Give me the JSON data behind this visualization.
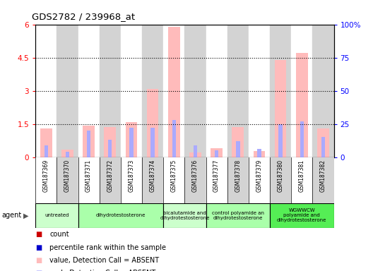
{
  "title": "GDS2782 / 239968_at",
  "samples": [
    "GSM187369",
    "GSM187370",
    "GSM187371",
    "GSM187372",
    "GSM187373",
    "GSM187374",
    "GSM187375",
    "GSM187376",
    "GSM187377",
    "GSM187378",
    "GSM187379",
    "GSM187380",
    "GSM187381",
    "GSM187382"
  ],
  "absent_value": [
    1.3,
    0.35,
    1.43,
    1.35,
    1.6,
    3.1,
    5.9,
    0.22,
    0.4,
    1.35,
    0.28,
    4.4,
    4.7,
    1.3
  ],
  "absent_rank_pct": [
    9,
    4,
    20,
    13,
    22,
    22,
    28,
    9,
    5,
    12,
    6,
    25,
    27,
    15
  ],
  "agents": [
    {
      "label": "untreated",
      "start": 0,
      "end": 2,
      "color": "#ccffcc"
    },
    {
      "label": "dihydrotestosterone",
      "start": 2,
      "end": 6,
      "color": "#aaffaa"
    },
    {
      "label": "bicalutamide and\ndihydrotestosterone",
      "start": 6,
      "end": 8,
      "color": "#ccffcc"
    },
    {
      "label": "control polyamide an\ndihydrotestosterone",
      "start": 8,
      "end": 11,
      "color": "#aaffaa"
    },
    {
      "label": "WGWWCW\npolyamide and\ndihydrotestosterone",
      "start": 11,
      "end": 14,
      "color": "#55ee55"
    }
  ],
  "ylim": [
    0,
    6
  ],
  "y2lim": [
    0,
    100
  ],
  "yticks": [
    0,
    1.5,
    3.0,
    4.5,
    6.0
  ],
  "ytick_labels": [
    "0",
    "1.5",
    "3",
    "4.5",
    "6"
  ],
  "y2ticks": [
    0,
    25,
    50,
    75,
    100
  ],
  "y2tick_labels": [
    "0",
    "25",
    "50",
    "75",
    "100%"
  ],
  "absent_bar_color": "#ffbbbb",
  "absent_rank_bar_color": "#aaaaff",
  "count_color": "#cc0000",
  "rank_color": "#0000cc",
  "col_colors": [
    "#ffffff",
    "#d3d3d3"
  ],
  "plot_bg": "#ffffff",
  "absent_bar_width": 0.55,
  "absent_rank_bar_width": 0.18
}
